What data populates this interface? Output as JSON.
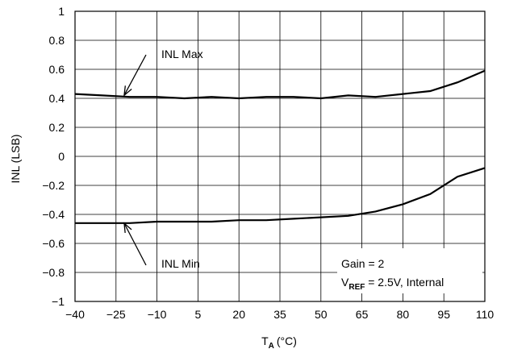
{
  "chart_data": {
    "type": "line",
    "title": "",
    "xlabel": "T",
    "xlabel_sub": "A",
    "xlabel_unit": "(°C)",
    "ylabel": "INL (LSB)",
    "xlim": [
      -40,
      110
    ],
    "ylim": [
      -1,
      1
    ],
    "xticks": [
      -40,
      -25,
      -10,
      5,
      20,
      35,
      50,
      65,
      80,
      95,
      110
    ],
    "xtick_labels": [
      "−40",
      "−25",
      "−10",
      "5",
      "20",
      "35",
      "50",
      "65",
      "80",
      "95",
      "110"
    ],
    "yticks": [
      -1,
      -0.8,
      -0.6,
      -0.4,
      -0.2,
      0,
      0.2,
      0.4,
      0.6,
      0.8,
      1
    ],
    "ytick_labels": [
      "−1",
      "−0.8",
      "−0.6",
      "−0.4",
      "−0.2",
      "0",
      "0.2",
      "0.4",
      "0.6",
      "0.8",
      "1"
    ],
    "grid": true,
    "series": [
      {
        "name": "INL Max",
        "color": "#000000",
        "x": [
          -40,
          -30,
          -20,
          -10,
          0,
          10,
          20,
          30,
          40,
          50,
          60,
          70,
          80,
          90,
          100,
          110
        ],
        "y": [
          0.43,
          0.42,
          0.41,
          0.41,
          0.4,
          0.41,
          0.4,
          0.41,
          0.41,
          0.4,
          0.42,
          0.41,
          0.43,
          0.45,
          0.51,
          0.59
        ]
      },
      {
        "name": "INL Min",
        "color": "#000000",
        "x": [
          -40,
          -30,
          -20,
          -10,
          0,
          10,
          20,
          30,
          40,
          50,
          60,
          70,
          80,
          90,
          100,
          110
        ],
        "y": [
          -0.46,
          -0.46,
          -0.46,
          -0.45,
          -0.45,
          -0.45,
          -0.44,
          -0.44,
          -0.43,
          -0.42,
          -0.41,
          -0.38,
          -0.33,
          -0.26,
          -0.14,
          -0.08
        ]
      }
    ],
    "annotations": [
      {
        "label": "INL Max",
        "target_x": -22,
        "target_y": 0.41
      },
      {
        "label": "INL Min",
        "target_x": -22,
        "target_y": -0.45
      }
    ],
    "conditions": {
      "line1": "Gain = 2",
      "line2_main": "V",
      "line2_sub": "REF",
      "line2_rest": " = 2.5V, Internal"
    }
  }
}
